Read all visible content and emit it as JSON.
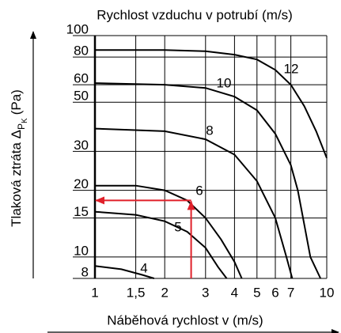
{
  "chart_data": {
    "type": "line",
    "title": "Rychlost vzduchu v potrubí (m/s)",
    "xlabel": "Náběhová rychlost v (m/s)",
    "ylabel": {
      "main": "Tlaková ztráta  Δ",
      "sub": "P",
      "subsub": "K",
      "unit": "(Pa)"
    },
    "xscale": "log",
    "yscale": "log",
    "xlim": [
      1,
      10
    ],
    "ylim": [
      8,
      100
    ],
    "xticks": [
      1,
      {
        "value": 1.5,
        "label": "1,5"
      },
      2,
      3,
      4,
      5,
      6,
      7,
      10
    ],
    "yticks": [
      8,
      10,
      15,
      20,
      30,
      50,
      60,
      80,
      100
    ],
    "grid": true,
    "color": "#000000",
    "series": [
      {
        "name": "4",
        "x": [
          1,
          1.3,
          1.6,
          1.8
        ],
        "values": [
          9.1,
          8.8,
          8.3,
          8
        ]
      },
      {
        "name": "5",
        "x": [
          1,
          1.5,
          2,
          2.5,
          3,
          3.4,
          3.7
        ],
        "values": [
          16,
          15.5,
          14.5,
          13,
          11,
          9,
          8
        ]
      },
      {
        "name": "6",
        "x": [
          1,
          1.5,
          2,
          2.5,
          3,
          3.5,
          4,
          4.3
        ],
        "values": [
          21,
          21,
          20,
          18,
          15,
          12,
          9.5,
          8
        ]
      },
      {
        "name": "8",
        "x": [
          1,
          2,
          3,
          4,
          5,
          6,
          6.7,
          7.1
        ],
        "values": [
          38,
          37,
          34,
          29,
          22,
          15,
          10,
          8
        ]
      },
      {
        "name": "10",
        "x": [
          1,
          2,
          3,
          4,
          5,
          6,
          7,
          7.5,
          8,
          8.5,
          9.4
        ],
        "values": [
          61,
          60,
          58,
          53,
          46,
          36,
          26,
          20,
          14,
          10,
          8
        ]
      },
      {
        "name": "12",
        "x": [
          1,
          2,
          3,
          4,
          5,
          6,
          7,
          8,
          9,
          10
        ],
        "values": [
          86,
          86,
          85,
          82,
          78,
          70,
          60,
          48,
          37,
          28
        ]
      }
    ],
    "guide": {
      "x": 2.6,
      "y": 18,
      "color": "#e0202a"
    }
  }
}
